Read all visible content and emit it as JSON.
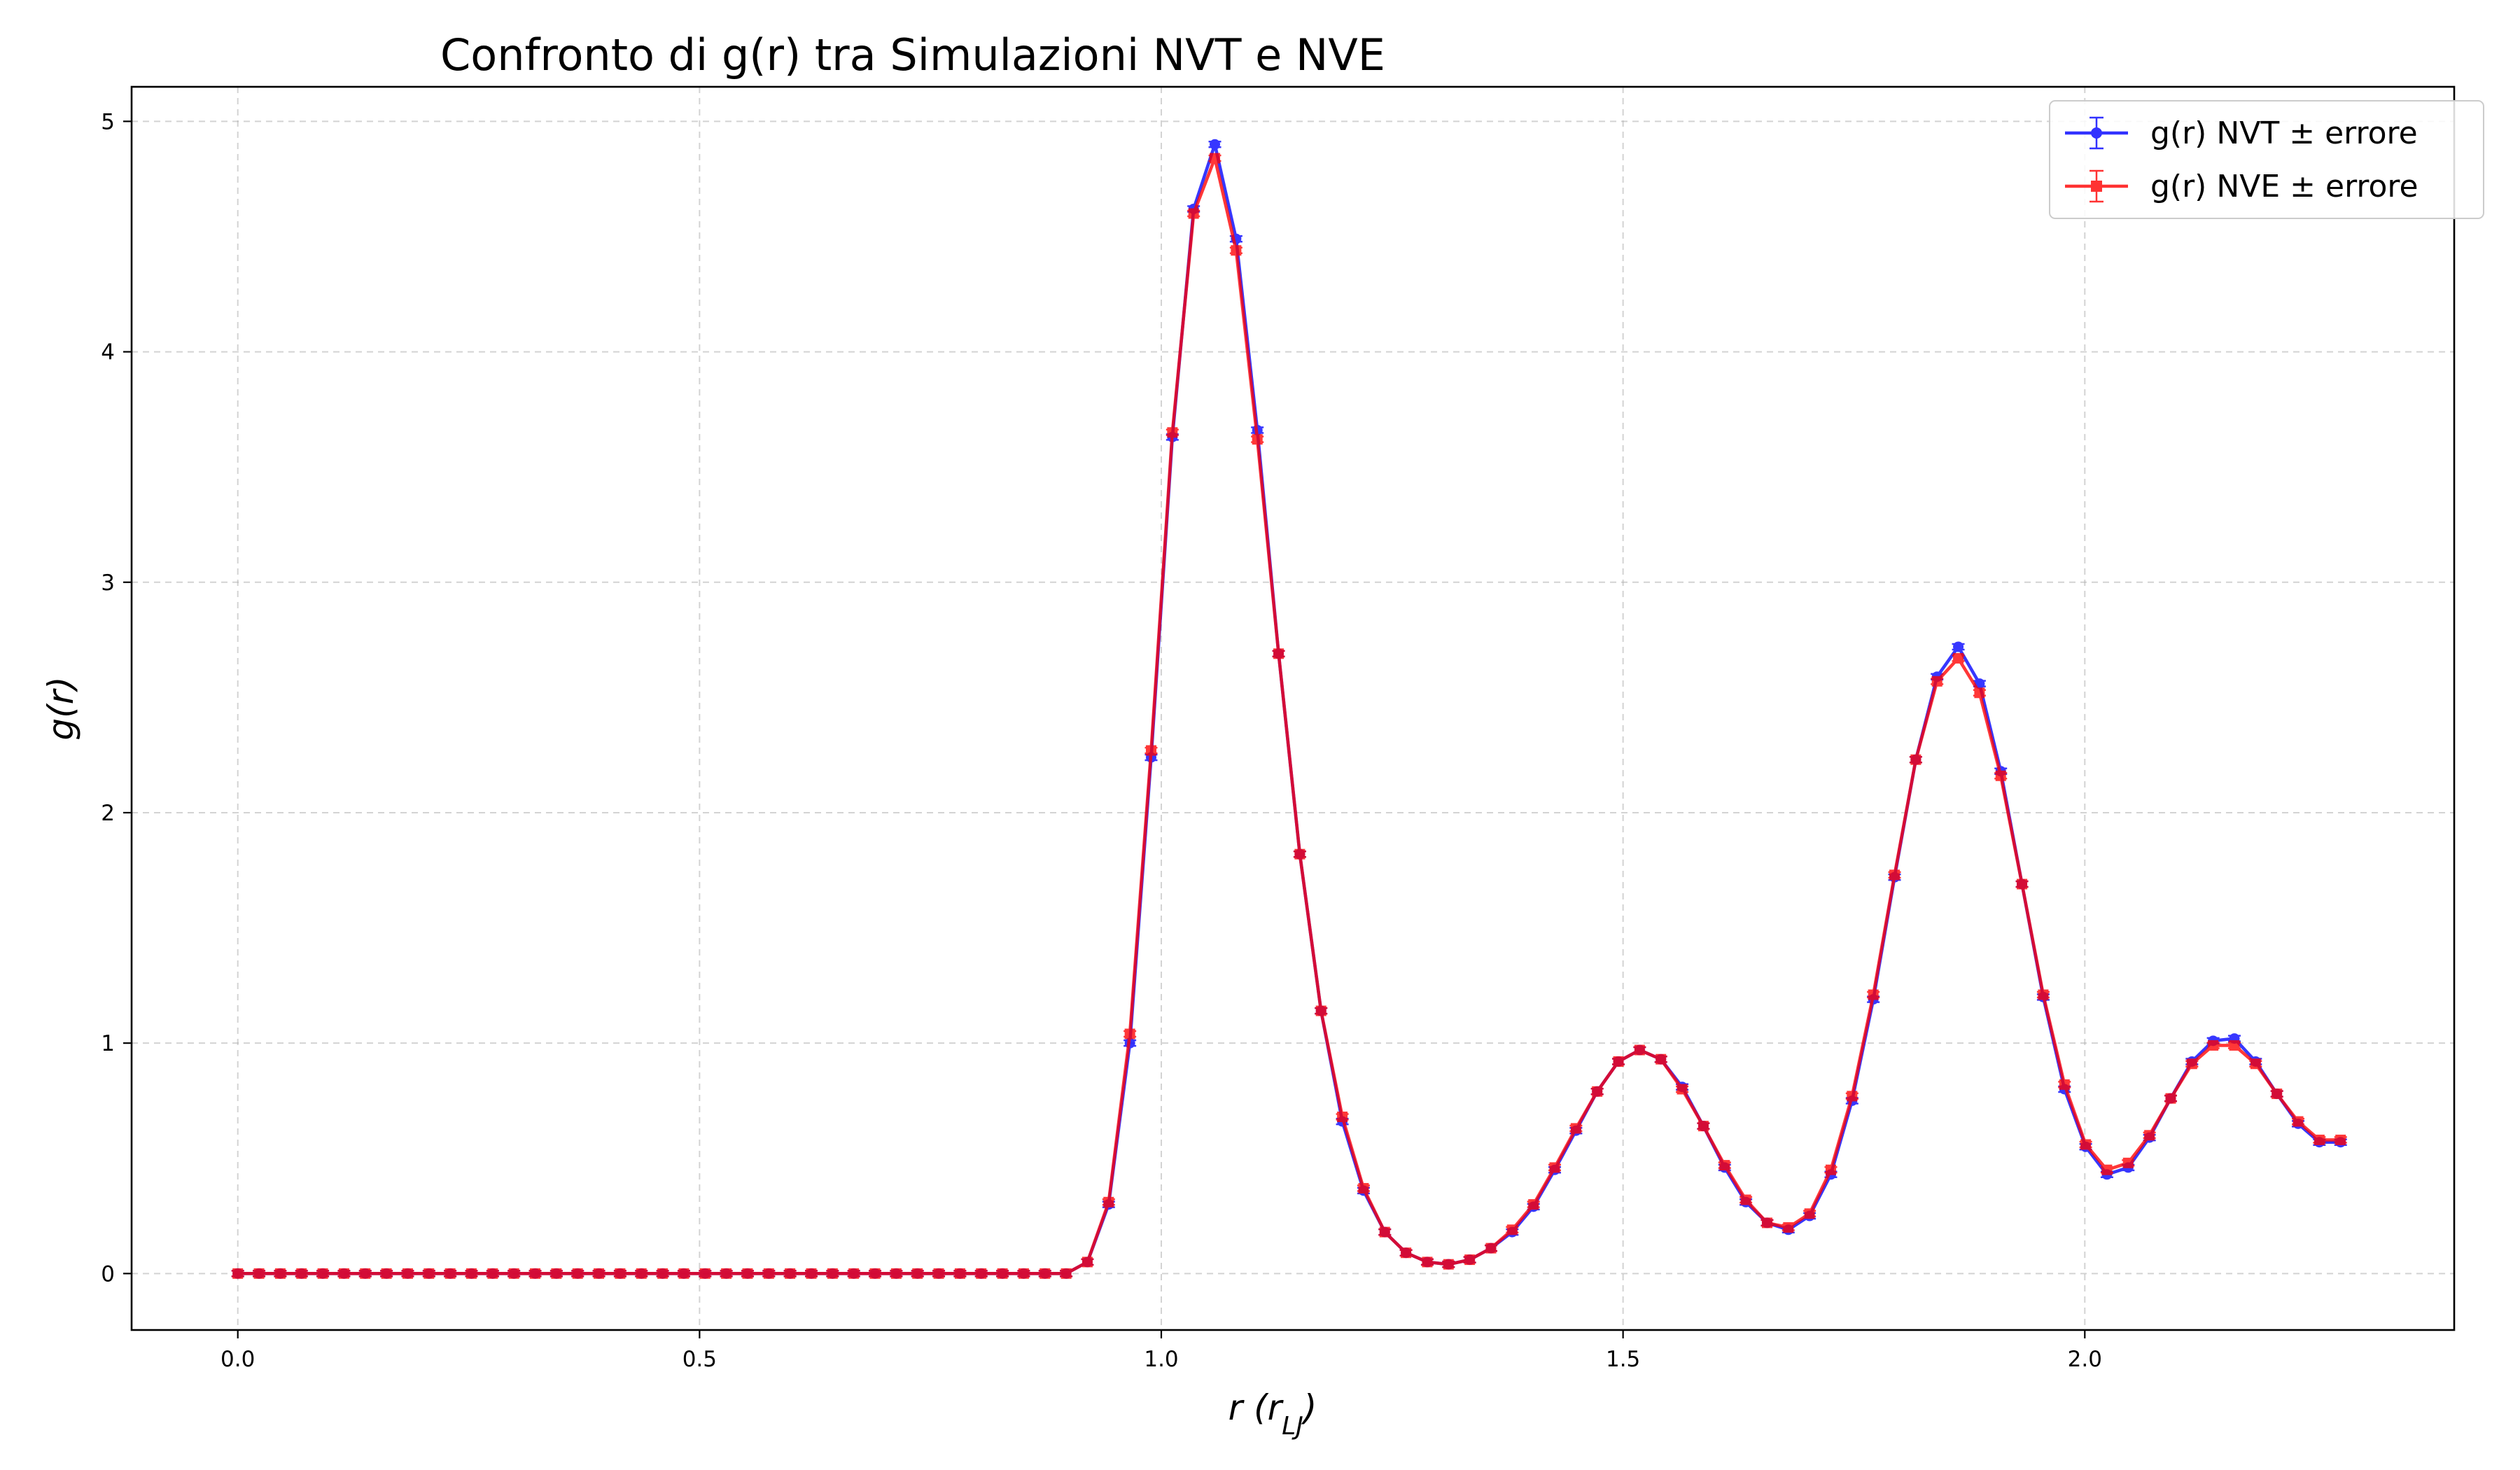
{
  "chart_data": {
    "type": "line",
    "title": "Confronto di g(r) tra Simulazioni NVT e NVE",
    "xlabel": {
      "main": "r (r",
      "sub": "LJ",
      "close": ")"
    },
    "ylabel": "g(r)",
    "xlim": [
      -0.115,
      2.4
    ],
    "ylim": [
      -0.245,
      5.15
    ],
    "xticks": [
      0.0,
      0.5,
      1.0,
      1.5,
      2.0
    ],
    "xtick_labels": [
      "0.0",
      "0.5",
      "1.0",
      "1.5",
      "2.0"
    ],
    "yticks": [
      0,
      1,
      2,
      3,
      4,
      5
    ],
    "ytick_labels": [
      "0",
      "1",
      "2",
      "3",
      "4",
      "5"
    ],
    "grid": true,
    "legend_position": "top-right",
    "x": [
      0.0,
      0.023,
      0.046,
      0.069,
      0.092,
      0.115,
      0.138,
      0.161,
      0.184,
      0.207,
      0.23,
      0.253,
      0.276,
      0.299,
      0.322,
      0.345,
      0.368,
      0.391,
      0.414,
      0.437,
      0.46,
      0.483,
      0.506,
      0.529,
      0.552,
      0.575,
      0.598,
      0.621,
      0.644,
      0.667,
      0.69,
      0.713,
      0.736,
      0.759,
      0.782,
      0.805,
      0.828,
      0.851,
      0.874,
      0.897,
      0.92,
      0.943,
      0.966,
      0.989,
      1.012,
      1.035,
      1.058,
      1.081,
      1.104,
      1.127,
      1.15,
      1.173,
      1.196,
      1.219,
      1.242,
      1.265,
      1.288,
      1.311,
      1.334,
      1.357,
      1.38,
      1.403,
      1.426,
      1.449,
      1.472,
      1.495,
      1.518,
      1.541,
      1.564,
      1.587,
      1.61,
      1.633,
      1.656,
      1.679,
      1.702,
      1.725,
      1.748,
      1.771,
      1.794,
      1.817,
      1.84,
      1.863,
      1.886,
      1.909,
      1.932,
      1.955,
      1.978,
      2.001,
      2.024,
      2.047,
      2.07,
      2.093,
      2.116,
      2.139,
      2.162,
      2.185,
      2.208,
      2.231,
      2.254,
      2.277
    ],
    "series": [
      {
        "name": "g(r) NVT ± errore",
        "color": "#0000ff",
        "marker": "circle",
        "values": [
          0,
          0,
          0,
          0,
          0,
          0,
          0,
          0,
          0,
          0,
          0,
          0,
          0,
          0,
          0,
          0,
          0,
          0,
          0,
          0,
          0,
          0,
          0,
          0,
          0,
          0,
          0,
          0,
          0,
          0,
          0,
          0,
          0,
          0,
          0,
          0,
          0,
          0,
          0,
          0,
          0.05,
          0.3,
          1.0,
          2.24,
          3.63,
          4.62,
          4.9,
          4.49,
          3.66,
          2.69,
          1.82,
          1.14,
          0.66,
          0.36,
          0.18,
          0.09,
          0.05,
          0.04,
          0.06,
          0.11,
          0.18,
          0.29,
          0.45,
          0.62,
          0.79,
          0.92,
          0.97,
          0.93,
          0.81,
          0.64,
          0.46,
          0.31,
          0.22,
          0.19,
          0.25,
          0.43,
          0.75,
          1.19,
          1.72,
          2.23,
          2.59,
          2.72,
          2.56,
          2.18,
          1.69,
          1.2,
          0.8,
          0.55,
          0.43,
          0.46,
          0.59,
          0.76,
          0.92,
          1.01,
          1.02,
          0.92,
          0.78,
          0.65,
          0.57,
          0.57
        ]
      },
      {
        "name": "g(r) NVE ± errore",
        "color": "#ff0000",
        "marker": "square",
        "values": [
          0,
          0,
          0,
          0,
          0,
          0,
          0,
          0,
          0,
          0,
          0,
          0,
          0,
          0,
          0,
          0,
          0,
          0,
          0,
          0,
          0,
          0,
          0,
          0,
          0,
          0,
          0,
          0,
          0,
          0,
          0,
          0,
          0,
          0,
          0,
          0,
          0,
          0,
          0,
          0,
          0.05,
          0.31,
          1.04,
          2.27,
          3.65,
          4.6,
          4.84,
          4.44,
          3.62,
          2.69,
          1.82,
          1.14,
          0.68,
          0.37,
          0.18,
          0.09,
          0.05,
          0.04,
          0.06,
          0.11,
          0.19,
          0.3,
          0.46,
          0.63,
          0.79,
          0.92,
          0.97,
          0.93,
          0.8,
          0.64,
          0.47,
          0.32,
          0.22,
          0.2,
          0.26,
          0.45,
          0.77,
          1.21,
          1.73,
          2.23,
          2.57,
          2.67,
          2.52,
          2.16,
          1.69,
          1.21,
          0.82,
          0.56,
          0.45,
          0.48,
          0.6,
          0.76,
          0.91,
          0.99,
          0.99,
          0.91,
          0.78,
          0.66,
          0.58,
          0.58
        ]
      }
    ]
  }
}
